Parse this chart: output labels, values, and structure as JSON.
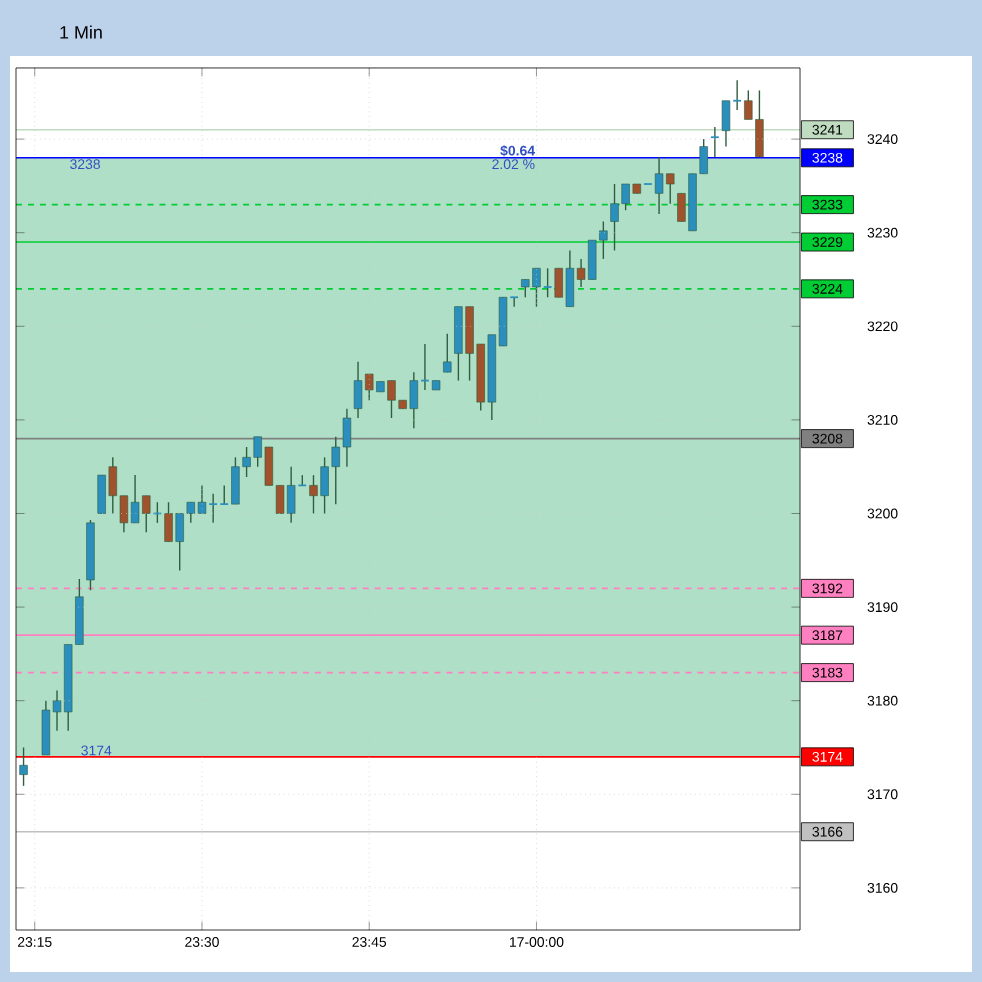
{
  "chart_data": {
    "type": "candlestick",
    "title": "1 Min",
    "x": [
      23.2333,
      23.2667,
      23.2833,
      23.3,
      23.3167,
      23.3333,
      23.35,
      23.3667,
      23.3833,
      23.4,
      23.4167,
      23.4333,
      23.45,
      23.4667,
      23.4833,
      23.5,
      23.5167,
      23.5333,
      23.55,
      23.5667,
      23.5833,
      23.6,
      23.6167,
      23.6333,
      23.65,
      23.6667,
      23.6833,
      23.7,
      23.7167,
      23.7333,
      23.75,
      23.7667,
      23.7833,
      23.8,
      23.8167,
      23.8333,
      23.85,
      23.8667,
      23.8833,
      23.9,
      23.9167,
      23.9333,
      23.95,
      23.9667,
      23.9833,
      24,
      24.0167,
      24.0333,
      24.05,
      24.0667,
      24.0833,
      24.1,
      24.1167,
      24.1333,
      24.15,
      24.1667,
      24.1833,
      24.2,
      24.2167,
      24.2333,
      24.25,
      24.2667,
      24.2833,
      24.3,
      24.3167,
      24.3333
    ],
    "ohlc": [
      [
        3172.1,
        3175.0,
        3170.9,
        3173.1
      ],
      [
        3174.2,
        3180.0,
        3174.2,
        3179.0
      ],
      [
        3178.8,
        3181.1,
        3176.8,
        3180.0
      ],
      [
        3178.8,
        3186.0,
        3176.8,
        3186.0
      ],
      [
        3186.0,
        3193.0,
        3186.0,
        3191.1
      ],
      [
        3192.9,
        3199.3,
        3191.8,
        3199.0
      ],
      [
        3200.0,
        3204.1,
        3200.0,
        3204.1
      ],
      [
        3205.0,
        3206.0,
        3200.0,
        3201.9
      ],
      [
        3201.9,
        3201.9,
        3198.0,
        3199.0
      ],
      [
        3199.0,
        3204.1,
        3199.0,
        3201.2
      ],
      [
        3201.9,
        3201.9,
        3198.0,
        3200.0
      ],
      [
        3200.0,
        3201.2,
        3199.0,
        3200.0
      ],
      [
        3200.0,
        3201.2,
        3197.0,
        3197.0
      ],
      [
        3197.0,
        3200.0,
        3193.9,
        3200.0
      ],
      [
        3200.0,
        3201.2,
        3199.0,
        3201.2
      ],
      [
        3200.0,
        3203.0,
        3200.0,
        3201.2
      ],
      [
        3201.0,
        3202.1,
        3199.0,
        3201.0
      ],
      [
        3201.0,
        3203.0,
        3201.0,
        3201.0
      ],
      [
        3201.0,
        3206.0,
        3201.0,
        3205.0
      ],
      [
        3205.0,
        3207.1,
        3203.9,
        3206.0
      ],
      [
        3206.0,
        3208.2,
        3205.0,
        3208.2
      ],
      [
        3207.1,
        3207.1,
        3203.0,
        3203.0
      ],
      [
        3203.0,
        3203.0,
        3200.0,
        3200.0
      ],
      [
        3200.0,
        3205.0,
        3199.0,
        3203.0
      ],
      [
        3203.0,
        3204.1,
        3203.0,
        3203.0
      ],
      [
        3203.0,
        3204.1,
        3200.0,
        3201.9
      ],
      [
        3201.9,
        3206.0,
        3200.0,
        3205.0
      ],
      [
        3205.0,
        3208.2,
        3201.0,
        3207.1
      ],
      [
        3207.1,
        3211.2,
        3205.0,
        3210.2
      ],
      [
        3211.2,
        3216.2,
        3210.2,
        3214.2
      ],
      [
        3214.9,
        3214.9,
        3212.1,
        3213.2
      ],
      [
        3213.0,
        3214.1,
        3213.0,
        3214.1
      ],
      [
        3214.2,
        3214.2,
        3210.2,
        3212.1
      ],
      [
        3212.1,
        3212.1,
        3211.2,
        3211.2
      ],
      [
        3211.2,
        3215.1,
        3209.1,
        3214.2
      ],
      [
        3214.2,
        3218.1,
        3213.2,
        3214.2
      ],
      [
        3213.2,
        3214.2,
        3213.2,
        3214.2
      ],
      [
        3215.1,
        3219.2,
        3215.1,
        3216.2
      ],
      [
        3217.1,
        3222.1,
        3214.2,
        3222.1
      ],
      [
        3222.1,
        3222.1,
        3214.2,
        3217.1
      ],
      [
        3218.1,
        3218.1,
        3211.0,
        3211.9
      ],
      [
        3211.9,
        3219.1,
        3210.0,
        3219.1
      ],
      [
        3217.9,
        3223.1,
        3217.9,
        3223.1
      ],
      [
        3223.1,
        3223.1,
        3222.1,
        3223.1
      ],
      [
        3224.2,
        3225.0,
        3223.1,
        3225.0
      ],
      [
        3224.2,
        3226.2,
        3222.1,
        3226.2
      ],
      [
        3224.2,
        3226.2,
        3223.1,
        3224.2
      ],
      [
        3226.2,
        3226.2,
        3223.1,
        3223.1
      ],
      [
        3222.1,
        3228.1,
        3222.1,
        3226.2
      ],
      [
        3226.2,
        3227.2,
        3224.2,
        3225.0
      ],
      [
        3225.0,
        3229.2,
        3225.0,
        3229.2
      ],
      [
        3229.2,
        3231.2,
        3227.2,
        3230.2
      ],
      [
        3231.2,
        3235.2,
        3228.1,
        3233.1
      ],
      [
        3233.1,
        3235.2,
        3232.4,
        3235.2
      ],
      [
        3235.2,
        3235.2,
        3234.2,
        3234.2
      ],
      [
        3235.2,
        3235.2,
        3235.2,
        3235.2
      ],
      [
        3234.2,
        3238.1,
        3232.0,
        3236.3
      ],
      [
        3236.3,
        3236.3,
        3233.1,
        3235.2
      ],
      [
        3234.2,
        3234.2,
        3231.2,
        3231.2
      ],
      [
        3230.2,
        3236.3,
        3230.2,
        3236.3
      ],
      [
        3236.3,
        3240.0,
        3236.3,
        3239.2
      ],
      [
        3240.2,
        3241.3,
        3238.1,
        3240.2
      ],
      [
        3240.9,
        3244.1,
        3239.2,
        3244.1
      ],
      [
        3244.1,
        3246.3,
        3243.1,
        3244.1
      ],
      [
        3244.1,
        3245.2,
        3242.1,
        3242.1
      ],
      [
        3242.1,
        3245.2,
        3238.1,
        3238.1
      ]
    ],
    "xlim": [
      23.222,
      24.394
    ],
    "ylim": [
      3155.5,
      3247.6
    ],
    "xticks": [
      {
        "value": 23.25,
        "label": "23:15"
      },
      {
        "value": 23.5,
        "label": "23:30"
      },
      {
        "value": 23.75,
        "label": "23:45"
      },
      {
        "value": 24,
        "label": "17-00:00"
      }
    ],
    "yticks": [
      3160,
      3170,
      3180,
      3190,
      3200,
      3210,
      3220,
      3230,
      3240
    ],
    "grid": true,
    "bands": [
      {
        "axis": "y",
        "from": 3174,
        "to": 3238,
        "color": "#b0dfc8"
      }
    ],
    "ref_lines": [
      {
        "axis": "y",
        "value": 3241,
        "label": "3241",
        "color": "#c0dcc0",
        "line_style": "solid"
      },
      {
        "axis": "y",
        "value": 3238,
        "label": "3238",
        "color": "#0000ff",
        "line_style": "solid"
      },
      {
        "axis": "y",
        "value": 3233,
        "label": "3233",
        "color": "#00cc33",
        "line_style": "dashed"
      },
      {
        "axis": "y",
        "value": 3229,
        "label": "3229",
        "color": "#00cc33",
        "line_style": "solid"
      },
      {
        "axis": "y",
        "value": 3224,
        "label": "3224",
        "color": "#00cc33",
        "line_style": "dashed"
      },
      {
        "axis": "y",
        "value": 3208,
        "label": "3208",
        "color": "#808080",
        "line_style": "solid"
      },
      {
        "axis": "y",
        "value": 3192,
        "label": "3192",
        "color": "#ff80c0",
        "line_style": "dashed"
      },
      {
        "axis": "y",
        "value": 3187,
        "label": "3187",
        "color": "#ff80c0",
        "line_style": "solid"
      },
      {
        "axis": "y",
        "value": 3183,
        "label": "3183",
        "color": "#ff80c0",
        "line_style": "dashed"
      },
      {
        "axis": "y",
        "value": 3174,
        "label": "3174",
        "color": "#ff0000",
        "line_style": "solid"
      },
      {
        "axis": "y",
        "value": 3166,
        "label": "3166",
        "color": "#c0c0c0",
        "line_style": "solid"
      }
    ],
    "annotations": [
      {
        "text": "$0.64",
        "x": 24.0,
        "y": 3238
      },
      {
        "text": "2.02 %",
        "x": 24.0,
        "y": 3238
      },
      {
        "text": "3238",
        "x": 23.3,
        "y": 3238
      },
      {
        "text": "3174",
        "x": 23.3167,
        "y": 3174
      }
    ]
  }
}
